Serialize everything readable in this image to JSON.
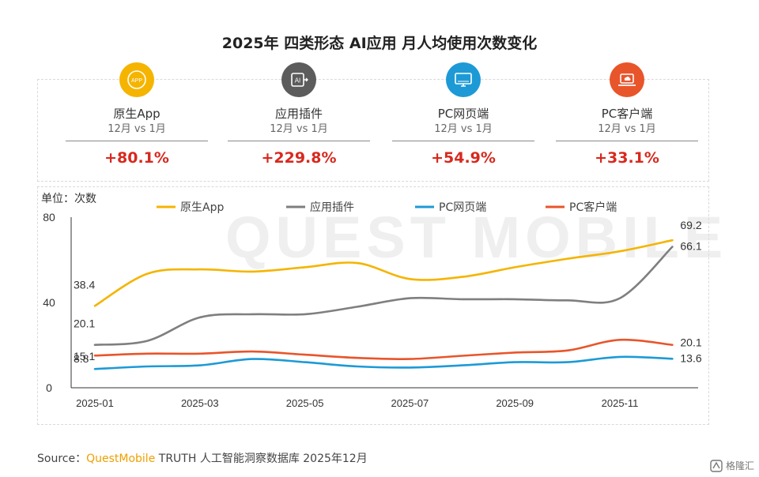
{
  "title": "2025年 四类形态 AI应用 月人均使用次数变化",
  "watermark": "QUEST MOBILE",
  "colors": {
    "app": "#f5b400",
    "plugin": "#7f7f7f",
    "web": "#1d9ad6",
    "client": "#e8552b",
    "increase": "#d7291e"
  },
  "kpis": [
    {
      "icon": "app-icon",
      "badge": "APP",
      "name": "原生App",
      "period": "12月 vs 1月",
      "change": "+80.1%"
    },
    {
      "icon": "ai-plugin-icon",
      "badge": "AI",
      "name": "应用插件",
      "period": "12月 vs 1月",
      "change": "+229.8%"
    },
    {
      "icon": "monitor-icon",
      "badge": "",
      "name": "PC网页端",
      "period": "12月 vs 1月",
      "change": "+54.9%"
    },
    {
      "icon": "laptop-cloud-icon",
      "badge": "",
      "name": "PC客户端",
      "period": "12月 vs 1月",
      "change": "+33.1%"
    }
  ],
  "chart_data": {
    "type": "line",
    "unit_label": "单位：次数",
    "x": [
      "2025-01",
      "2025-02",
      "2025-03",
      "2025-04",
      "2025-05",
      "2025-06",
      "2025-07",
      "2025-08",
      "2025-09",
      "2025-10",
      "2025-11",
      "2025-12"
    ],
    "x_tick_labels": [
      "2025-01",
      "2025-03",
      "2025-05",
      "2025-07",
      "2025-09",
      "2025-11"
    ],
    "ylim": [
      0,
      80
    ],
    "y_ticks": [
      0,
      40,
      80
    ],
    "legend_position": "top",
    "series": [
      {
        "name": "原生App",
        "color": "#f5b400",
        "values": [
          38.4,
          53.5,
          55.5,
          54.5,
          56.5,
          58.5,
          51.0,
          52.0,
          56.5,
          60.5,
          64.0,
          69.2
        ],
        "labels": {
          "0": "38.4",
          "11": "69.2"
        }
      },
      {
        "name": "应用插件",
        "color": "#7f7f7f",
        "values": [
          20.1,
          22.0,
          33.0,
          34.5,
          34.5,
          38.0,
          42.0,
          41.5,
          41.5,
          41.0,
          42.0,
          66.1
        ],
        "labels": {
          "0": "20.1",
          "11": "66.1"
        }
      },
      {
        "name": "PC网页端",
        "color": "#1d9ad6",
        "values": [
          8.8,
          10.0,
          10.5,
          13.5,
          12.0,
          10.0,
          9.5,
          10.5,
          12.0,
          12.0,
          14.5,
          13.6
        ],
        "labels": {
          "0": "8.8",
          "11": "13.6"
        }
      },
      {
        "name": "PC客户端",
        "color": "#e8552b",
        "values": [
          15.1,
          16.0,
          16.0,
          17.0,
          15.5,
          14.0,
          13.5,
          15.0,
          16.5,
          17.5,
          22.5,
          20.1
        ],
        "labels": {
          "0": "15.1",
          "11": "20.1"
        }
      }
    ]
  },
  "source": {
    "prefix": "Source：",
    "brand": "QuestMobile",
    "rest": " TRUTH 人工智能洞察数据库 2025年12月"
  },
  "corner_logo": "格隆汇"
}
